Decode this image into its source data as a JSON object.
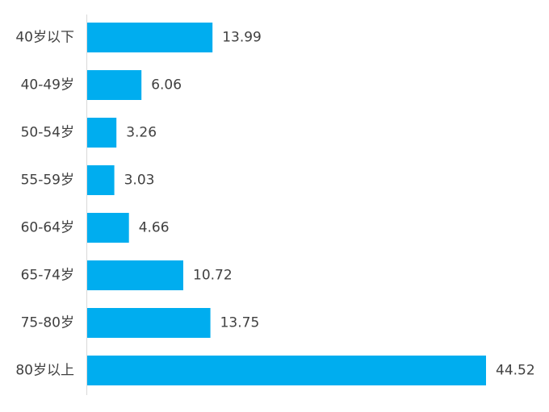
{
  "chart_data": {
    "type": "bar",
    "orientation": "horizontal",
    "categories": [
      "40岁以下",
      "40-49岁",
      "50-54岁",
      "55-59岁",
      "60-64岁",
      "65-74岁",
      "75-80岁",
      "80岁以上"
    ],
    "values": [
      13.99,
      6.06,
      3.26,
      3.03,
      4.66,
      10.72,
      13.75,
      44.52
    ],
    "value_labels": [
      "13.99",
      "6.06",
      "3.26",
      "3.03",
      "4.66",
      "10.72",
      "13.75",
      "44.52"
    ],
    "title": "",
    "xlabel": "",
    "ylabel": "",
    "xlim": [
      0,
      50
    ],
    "grid": false,
    "legend": "none",
    "bar_color": "#00ADEF",
    "text_color": "#404040",
    "axis_color": "#D9D9D9"
  }
}
